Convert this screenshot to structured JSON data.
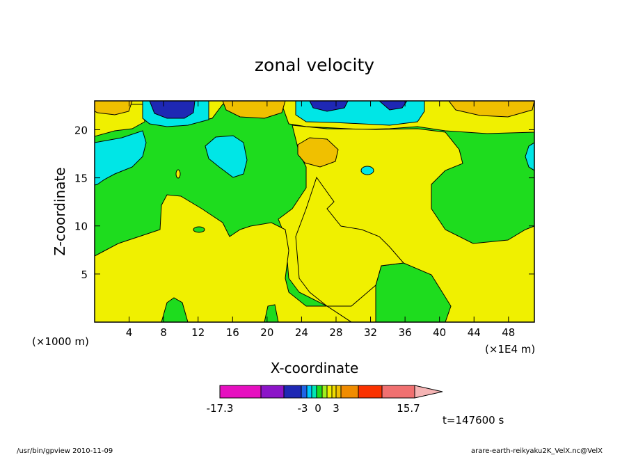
{
  "chart_data": {
    "type": "heatmap",
    "title": "zonal velocity",
    "xlabel": "X-coordinate",
    "ylabel": "Z-coordinate",
    "x_unit_left": "(×1000 m)",
    "x_unit_right": "(×1E4 m)",
    "xlim": [
      0,
      51
    ],
    "ylim": [
      0,
      23
    ],
    "x_ticks": [
      4,
      8,
      12,
      16,
      20,
      24,
      28,
      32,
      36,
      40,
      44,
      48
    ],
    "y_ticks": [
      5,
      10,
      15,
      20
    ],
    "time_label": "t=147600 s",
    "colorbar": {
      "tick_labels": [
        "-17.3",
        "-3",
        "0",
        "3",
        "15.7"
      ],
      "colors": [
        "#e60fc0",
        "#8c14c8",
        "#1e28b4",
        "#1e64e6",
        "#00c8ff",
        "#00e6b4",
        "#1edc1e",
        "#a0f01e",
        "#f0f000",
        "#f0dc00",
        "#f0c000",
        "#f08c00",
        "#fa3200",
        "#f07070",
        "#f5b4b4"
      ],
      "scheme": "magenta-blue-cyan-green-yellow-orange-red-pink"
    },
    "regions": [
      {
        "name": "upper-left-orange",
        "level": 2.5
      },
      {
        "name": "top-blue-cell-10km",
        "level": -6
      },
      {
        "name": "top-orange-cell-18km",
        "level": 2.5
      },
      {
        "name": "top-blue-cell-28km",
        "level": -4
      },
      {
        "name": "top-blue-cell-34km",
        "level": -6
      },
      {
        "name": "top-orange-cell-46km",
        "level": 2.5
      },
      {
        "name": "cyan-left-edge",
        "level": -2
      },
      {
        "name": "cyan-blob-15km",
        "level": -2
      },
      {
        "name": "orange-blob-26km",
        "level": 2.5
      },
      {
        "name": "yellow-lower-left",
        "level": 1
      },
      {
        "name": "yellow-right-center",
        "level": 1
      },
      {
        "name": "green-background",
        "level": -0.5
      }
    ],
    "grid": false
  },
  "footer": {
    "left": "/usr/bin/gpview   2010-11-09",
    "right": "arare-earth-reikyaku2K_VelX.nc@VelX"
  }
}
